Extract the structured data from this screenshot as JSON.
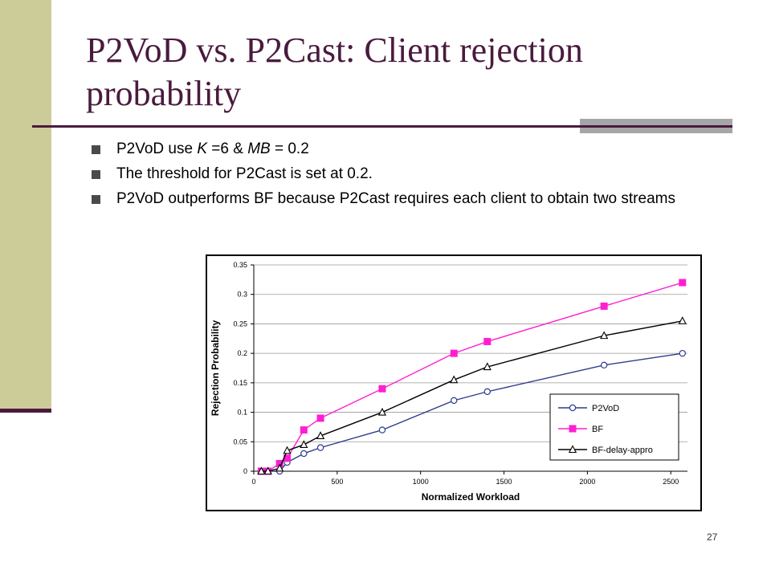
{
  "slide": {
    "title": "P2VoD vs. P2Cast: Client rejection probability",
    "bullets": [
      {
        "parts": [
          {
            "text": "P2VoD use ",
            "italic": false
          },
          {
            "text": "K",
            "italic": true
          },
          {
            "text": " =6 & ",
            "italic": false
          },
          {
            "text": "MB",
            "italic": true
          },
          {
            "text": " = 0.2",
            "italic": false
          }
        ]
      },
      {
        "parts": [
          {
            "text": "The threshold for P2Cast is set at 0.2.",
            "italic": false
          }
        ]
      },
      {
        "parts": [
          {
            "text": "P2VoD outperforms BF because P2Cast requires each client to obtain two streams",
            "italic": false
          }
        ]
      }
    ],
    "page_number": "27",
    "colors": {
      "accent": "#4a1a3e",
      "sidebar": "#cccc99",
      "accent_gray": "#a6a6a6"
    }
  },
  "chart_data": {
    "type": "line",
    "xlabel": "Normalized Workload",
    "ylabel": "Rejection Probability",
    "xlim": [
      0,
      2600
    ],
    "ylim": [
      0,
      0.35
    ],
    "xticks": [
      0,
      500,
      1000,
      1500,
      2000,
      2500
    ],
    "yticks": [
      0,
      0.05,
      0.1,
      0.15,
      0.2,
      0.25,
      0.3,
      0.35
    ],
    "xtick_labels": [
      "0",
      "500",
      "1000",
      "1500",
      "2000",
      "2500"
    ],
    "ytick_labels": [
      "0",
      "0.05",
      "0.1",
      "0.15",
      "0.2",
      "0.25",
      "0.3",
      "0.35"
    ],
    "grid": "horizontal",
    "legend_position": "bottom-right",
    "series": [
      {
        "name": "P2VoD",
        "color": "#2e3c8c",
        "marker": "circle",
        "x": [
          45,
          85,
          155,
          200,
          300,
          400,
          770,
          1200,
          1400,
          2100,
          2570
        ],
        "y": [
          0,
          0,
          0,
          0.015,
          0.03,
          0.04,
          0.07,
          0.12,
          0.135,
          0.18,
          0.2
        ]
      },
      {
        "name": "BF",
        "color": "#ff1fd0",
        "marker": "square",
        "x": [
          45,
          85,
          155,
          200,
          300,
          400,
          770,
          1200,
          1400,
          2100,
          2570
        ],
        "y": [
          0,
          0,
          0.013,
          0.022,
          0.07,
          0.09,
          0.14,
          0.2,
          0.22,
          0.28,
          0.32
        ]
      },
      {
        "name": "BF-delay-appro",
        "color": "#000000",
        "marker": "triangle",
        "x": [
          45,
          85,
          155,
          200,
          300,
          400,
          770,
          1200,
          1400,
          2100,
          2570
        ],
        "y": [
          0,
          0,
          0.005,
          0.035,
          0.045,
          0.06,
          0.1,
          0.155,
          0.177,
          0.23,
          0.255
        ]
      }
    ]
  }
}
